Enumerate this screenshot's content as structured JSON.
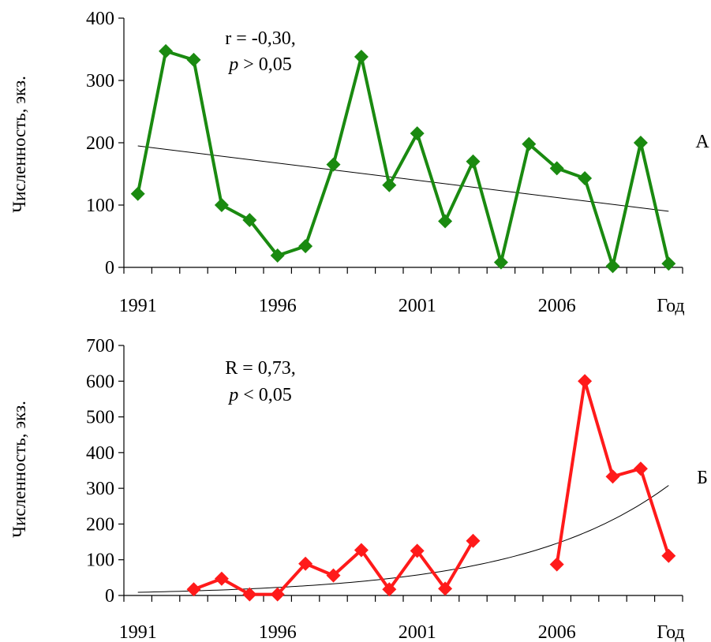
{
  "chart_data": [
    {
      "type": "line",
      "panel_label": "А",
      "ylabel": "Численность, экз.",
      "xlabel": "Год",
      "ylim": [
        0,
        400
      ],
      "yticks": [
        0,
        100,
        200,
        300,
        400
      ],
      "xlim": [
        1990.5,
        2010.5
      ],
      "xticks": [
        1991,
        1996,
        2001,
        2006
      ],
      "x_unit_label": "Год",
      "annotation": [
        "r = -0,30,",
        "p > 0,05"
      ],
      "color": "#1a8a10",
      "series": [
        {
          "x": [
            1991,
            1992,
            1993,
            1994,
            1995,
            1996,
            1997,
            1998,
            1999,
            2000,
            2001,
            2002,
            2003,
            2004,
            2005,
            2006,
            2007,
            2008,
            2009,
            2010
          ],
          "values": [
            118,
            347,
            333,
            100,
            76,
            19,
            34,
            165,
            338,
            132,
            215,
            74,
            170,
            8,
            198,
            159,
            143,
            2,
            200,
            6
          ]
        }
      ],
      "trend": {
        "type": "linear",
        "from": [
          1991,
          195
        ],
        "to": [
          2010,
          90
        ]
      }
    },
    {
      "type": "line",
      "panel_label": "Б",
      "ylabel": "Численность, экз.",
      "xlabel": "Год",
      "ylim": [
        0,
        700
      ],
      "yticks": [
        0,
        100,
        200,
        300,
        400,
        500,
        600,
        700
      ],
      "xlim": [
        1990.5,
        2010.5
      ],
      "xticks": [
        1991,
        1996,
        2001,
        2006
      ],
      "x_unit_label": "Год",
      "annotation": [
        "R = 0,73,",
        "p < 0,05"
      ],
      "color": "#ff1a1a",
      "series": [
        {
          "x": [
            1993,
            1994,
            1995,
            1996,
            1997,
            1998,
            1999,
            2000,
            2001,
            2002,
            2003,
            2004,
            2005,
            2006,
            2007,
            2008,
            2009,
            2010
          ],
          "values": [
            17,
            47,
            3,
            3,
            89,
            56,
            127,
            17,
            125,
            19,
            153,
            null,
            null,
            87,
            600,
            333,
            355,
            111
          ]
        }
      ],
      "trend": {
        "type": "exponential",
        "a": 8.5,
        "b": 0.187,
        "x0": 1990.8,
        "from": 1991,
        "to": 2010
      }
    }
  ]
}
